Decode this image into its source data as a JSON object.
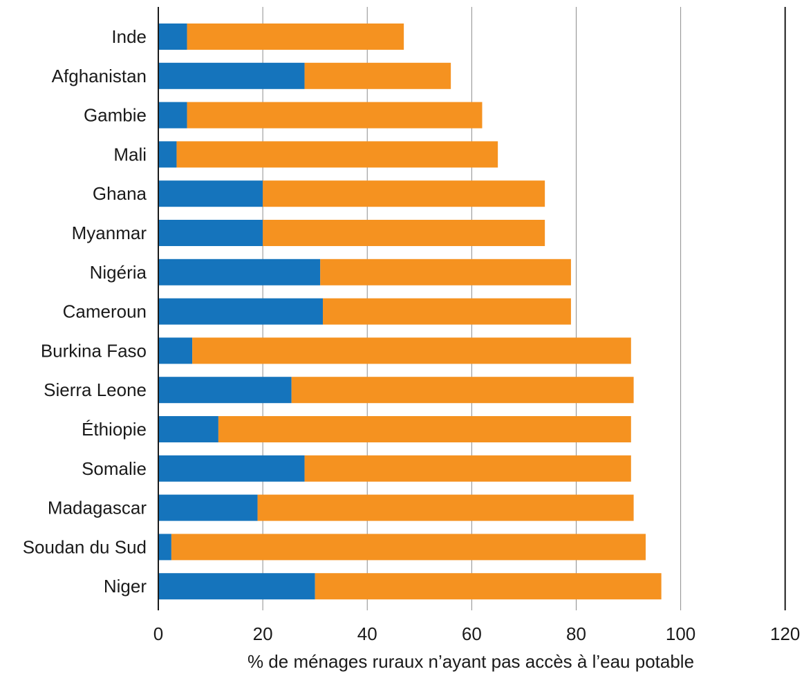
{
  "chart_data": {
    "type": "bar",
    "orientation": "horizontal",
    "stacked": true,
    "categories": [
      "Inde",
      "Afghanistan",
      "Gambie",
      "Mali",
      "Ghana",
      "Myanmar",
      "Nigéria",
      "Cameroun",
      "Burkina Faso",
      "Sierra Leone",
      "Éthiopie",
      "Somalie",
      "Madagascar",
      "Soudan du Sud",
      "Niger"
    ],
    "series": [
      {
        "values": [
          5.5,
          28.0,
          5.5,
          3.5,
          20.0,
          20.0,
          31.0,
          31.5,
          6.5,
          25.5,
          11.5,
          28.0,
          19.0,
          2.5,
          30.0
        ],
        "color": "#1574bc"
      },
      {
        "values": [
          41.5,
          28.0,
          56.5,
          61.5,
          54.0,
          54.0,
          48.0,
          47.5,
          84.0,
          65.5,
          79.0,
          62.5,
          72.0,
          90.8,
          66.3
        ],
        "color": "#f59220"
      }
    ],
    "x_ticks": [
      0,
      20,
      40,
      60,
      80,
      100,
      120
    ],
    "xlim": [
      0,
      120
    ],
    "xlabel": "% de ménages ruraux n’ayant pas accès à l’eau potable",
    "ylabel": "",
    "title": "",
    "grid": "vertical"
  }
}
